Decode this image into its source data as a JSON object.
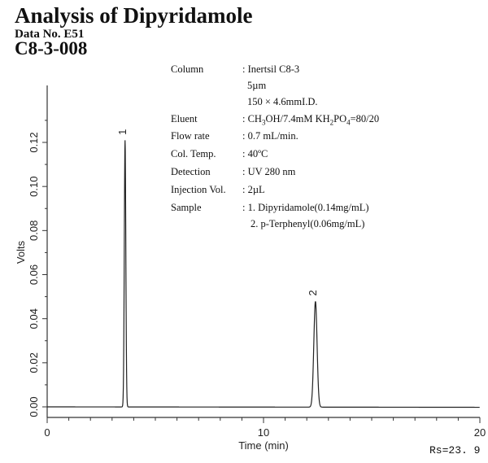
{
  "header": {
    "title": "Analysis of Dipyridamole",
    "data_no": "Data No. E51",
    "code": "C8-3-008"
  },
  "conditions": [
    {
      "label": "Column",
      "value": ": Inertsil C8-3"
    },
    {
      "label": "",
      "value": "5µm"
    },
    {
      "label": "",
      "value": "150 × 4.6mmI.D."
    },
    {
      "label": "Eluent",
      "value": ": CH3OH/7.4mM KH2PO4=80/20"
    },
    {
      "label": "Flow rate",
      "value": ": 0.7 mL/min."
    },
    {
      "label": "Col. Temp.",
      "value": ": 40ºC"
    },
    {
      "label": "Detection",
      "value": ": UV 280 nm"
    },
    {
      "label": "Injection Vol.",
      "value": ": 2µL"
    },
    {
      "label": "Sample",
      "value": ": 1. Dipyridamole(0.14mg/mL)"
    },
    {
      "label": "",
      "value": "2. p-Terphenyl(0.06mg/mL)"
    }
  ],
  "footer": {
    "resolution": "Rs=23. 9"
  },
  "chart_data": {
    "type": "line",
    "title": "Analysis of Dipyridamole",
    "xlabel": "Time (min)",
    "ylabel": "Volts",
    "xlim": [
      0,
      20
    ],
    "ylim": [
      -0.003,
      0.14
    ],
    "x_ticks": [
      0,
      10,
      20
    ],
    "y_ticks": [
      "0.00",
      "0.02",
      "0.04",
      "0.06",
      "0.08",
      "0.10",
      "0.12"
    ],
    "grid": false,
    "peaks": [
      {
        "label": "1",
        "name": "Dipyridamole",
        "retention_time": 3.6,
        "height": 0.121
      },
      {
        "label": "2",
        "name": "p-Terphenyl",
        "retention_time": 12.4,
        "height": 0.048
      }
    ],
    "baseline": 0.0,
    "annotations": [
      "Rs=23. 9"
    ]
  }
}
